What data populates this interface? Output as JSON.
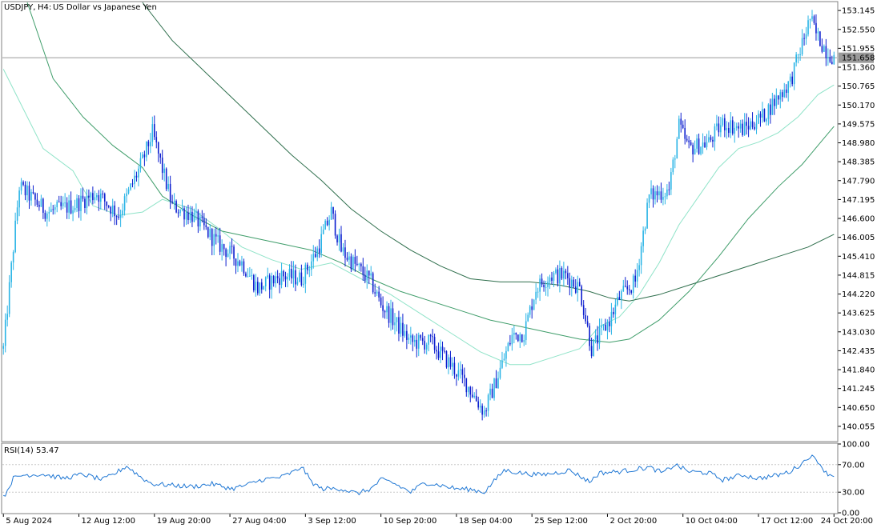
{
  "header": {
    "symbol": "USDJPY,",
    "timeframe": "H4:",
    "description": "US Dollar vs Japanese Yen"
  },
  "rsi_label": "RSI(14) 53.47",
  "colors": {
    "background": "#ffffff",
    "frame": "#808080",
    "grid": "#c8c8c8",
    "bull": "#2ab4e6",
    "bear": "#0d1fcf",
    "ma_fast": "#8fe3c8",
    "ma_mid": "#3f9d6a",
    "ma_slow": "#2e6e4c",
    "rsi_line": "#1f77d4",
    "price_label_bg": "#9a9a9a",
    "price_label_text": "#ffffff"
  },
  "chart_data": [
    {
      "type": "candlestick",
      "title": "USDJPY,, H4:  US Dollar vs Japanese Yen",
      "current_price": 151.658,
      "current_price_label": "151.658",
      "ylim": [
        139.6,
        153.4
      ],
      "y_ticks": [
        "153.145",
        "152.550",
        "151.955",
        "151.360",
        "150.765",
        "150.170",
        "149.575",
        "148.980",
        "148.385",
        "147.790",
        "147.195",
        "146.600",
        "146.005",
        "145.410",
        "144.815",
        "144.220",
        "143.625",
        "143.030",
        "142.435",
        "141.840",
        "141.245",
        "140.650",
        "140.055"
      ],
      "x_ticks": [
        "5 Aug 2024",
        "12 Aug 12:00",
        "19 Aug 20:00",
        "27 Aug 04:00",
        "3 Sep 12:00",
        "10 Sep 20:00",
        "18 Sep 04:00",
        "25 Sep 12:00",
        "2 Oct 20:00",
        "10 Oct 04:00",
        "17 Oct 12:00",
        "24 Oct 20:00"
      ],
      "close_path": [
        [
          0,
          142.5
        ],
        [
          8,
          147.6
        ],
        [
          22,
          146.8
        ],
        [
          35,
          147.0
        ],
        [
          47,
          147.4
        ],
        [
          58,
          146.7
        ],
        [
          70,
          148.4
        ],
        [
          75,
          149.3
        ],
        [
          85,
          147.0
        ],
        [
          95,
          146.7
        ],
        [
          108,
          145.8
        ],
        [
          120,
          145.2
        ],
        [
          128,
          144.4
        ],
        [
          140,
          144.8
        ],
        [
          150,
          144.7
        ],
        [
          158,
          145.6
        ],
        [
          165,
          146.8
        ],
        [
          170,
          145.6
        ],
        [
          185,
          144.6
        ],
        [
          190,
          143.9
        ],
        [
          205,
          142.7
        ],
        [
          215,
          142.7
        ],
        [
          225,
          142.0
        ],
        [
          233,
          141.4
        ],
        [
          242,
          140.5
        ],
        [
          248,
          141.5
        ],
        [
          256,
          142.9
        ],
        [
          262,
          143.0
        ],
        [
          268,
          144.4
        ],
        [
          275,
          144.8
        ],
        [
          283,
          144.8
        ],
        [
          290,
          144.4
        ],
        [
          296,
          142.5
        ],
        [
          305,
          143.4
        ],
        [
          310,
          144.1
        ],
        [
          318,
          144.6
        ],
        [
          325,
          147.3
        ],
        [
          335,
          147.5
        ],
        [
          340,
          149.5
        ],
        [
          345,
          148.8
        ],
        [
          355,
          149.0
        ],
        [
          362,
          149.6
        ],
        [
          372,
          149.4
        ],
        [
          382,
          149.8
        ],
        [
          392,
          150.6
        ],
        [
          396,
          150.9
        ],
        [
          402,
          152.1
        ],
        [
          406,
          152.9
        ],
        [
          409,
          152.4
        ],
        [
          414,
          151.9
        ],
        [
          418,
          151.66
        ]
      ],
      "ma_fast": [
        [
          0,
          151.3
        ],
        [
          20,
          148.8
        ],
        [
          35,
          148.1
        ],
        [
          45,
          147.0
        ],
        [
          58,
          146.7
        ],
        [
          70,
          146.8
        ],
        [
          80,
          147.2
        ],
        [
          95,
          146.9
        ],
        [
          108,
          146.3
        ],
        [
          120,
          145.7
        ],
        [
          135,
          145.3
        ],
        [
          150,
          145.0
        ],
        [
          165,
          145.2
        ],
        [
          180,
          144.7
        ],
        [
          195,
          144.2
        ],
        [
          210,
          143.6
        ],
        [
          225,
          143.0
        ],
        [
          240,
          142.4
        ],
        [
          255,
          142.0
        ],
        [
          265,
          142.0
        ],
        [
          275,
          142.2
        ],
        [
          290,
          142.5
        ],
        [
          300,
          143.2
        ],
        [
          310,
          143.5
        ],
        [
          320,
          144.2
        ],
        [
          330,
          145.2
        ],
        [
          340,
          146.4
        ],
        [
          350,
          147.3
        ],
        [
          360,
          148.2
        ],
        [
          370,
          148.8
        ],
        [
          380,
          149.0
        ],
        [
          390,
          149.3
        ],
        [
          400,
          149.8
        ],
        [
          410,
          150.5
        ],
        [
          418,
          150.8
        ]
      ],
      "ma_mid": [
        [
          12,
          153.4
        ],
        [
          25,
          151.0
        ],
        [
          40,
          149.8
        ],
        [
          55,
          148.9
        ],
        [
          70,
          148.2
        ],
        [
          80,
          147.3
        ],
        [
          95,
          146.7
        ],
        [
          110,
          146.2
        ],
        [
          125,
          146.0
        ],
        [
          140,
          145.8
        ],
        [
          155,
          145.6
        ],
        [
          170,
          145.2
        ],
        [
          185,
          144.7
        ],
        [
          200,
          144.3
        ],
        [
          215,
          144.0
        ],
        [
          230,
          143.7
        ],
        [
          245,
          143.4
        ],
        [
          260,
          143.2
        ],
        [
          275,
          143.0
        ],
        [
          290,
          142.8
        ],
        [
          305,
          142.7
        ],
        [
          315,
          142.8
        ],
        [
          330,
          143.4
        ],
        [
          345,
          144.3
        ],
        [
          360,
          145.4
        ],
        [
          375,
          146.6
        ],
        [
          390,
          147.6
        ],
        [
          402,
          148.3
        ],
        [
          410,
          148.9
        ],
        [
          418,
          149.5
        ]
      ],
      "ma_slow": [
        [
          70,
          153.4
        ],
        [
          85,
          152.2
        ],
        [
          100,
          151.3
        ],
        [
          115,
          150.4
        ],
        [
          130,
          149.5
        ],
        [
          145,
          148.6
        ],
        [
          160,
          147.8
        ],
        [
          175,
          146.9
        ],
        [
          190,
          146.2
        ],
        [
          205,
          145.6
        ],
        [
          220,
          145.1
        ],
        [
          235,
          144.7
        ],
        [
          250,
          144.6
        ],
        [
          265,
          144.6
        ],
        [
          280,
          144.5
        ],
        [
          295,
          144.3
        ],
        [
          305,
          144.1
        ],
        [
          315,
          144.0
        ],
        [
          330,
          144.2
        ],
        [
          345,
          144.5
        ],
        [
          360,
          144.8
        ],
        [
          375,
          145.1
        ],
        [
          390,
          145.4
        ],
        [
          405,
          145.7
        ],
        [
          418,
          146.1
        ]
      ]
    },
    {
      "type": "line",
      "title": "RSI(14) 53.47",
      "ylim": [
        0,
        100
      ],
      "levels": [
        30,
        70
      ],
      "y_ticks": [
        "100.00",
        "70.00",
        "30.00",
        "0.00"
      ],
      "path": [
        [
          0,
          22
        ],
        [
          5,
          50
        ],
        [
          10,
          55
        ],
        [
          20,
          56
        ],
        [
          30,
          50
        ],
        [
          40,
          56
        ],
        [
          50,
          48
        ],
        [
          55,
          55
        ],
        [
          62,
          68
        ],
        [
          70,
          50
        ],
        [
          75,
          42
        ],
        [
          85,
          40
        ],
        [
          95,
          38
        ],
        [
          105,
          42
        ],
        [
          115,
          35
        ],
        [
          122,
          40
        ],
        [
          130,
          48
        ],
        [
          140,
          52
        ],
        [
          148,
          62
        ],
        [
          150,
          68
        ],
        [
          155,
          45
        ],
        [
          160,
          35
        ],
        [
          170,
          35
        ],
        [
          178,
          28
        ],
        [
          185,
          35
        ],
        [
          190,
          48
        ],
        [
          195,
          45
        ],
        [
          205,
          30
        ],
        [
          212,
          44
        ],
        [
          220,
          40
        ],
        [
          228,
          35
        ],
        [
          235,
          34
        ],
        [
          242,
          30
        ],
        [
          252,
          62
        ],
        [
          260,
          58
        ],
        [
          270,
          55
        ],
        [
          278,
          58
        ],
        [
          285,
          62
        ],
        [
          295,
          45
        ],
        [
          300,
          58
        ],
        [
          310,
          60
        ],
        [
          320,
          64
        ],
        [
          325,
          66
        ],
        [
          332,
          58
        ],
        [
          338,
          70
        ],
        [
          345,
          60
        ],
        [
          355,
          58
        ],
        [
          362,
          48
        ],
        [
          372,
          55
        ],
        [
          380,
          50
        ],
        [
          390,
          55
        ],
        [
          396,
          60
        ],
        [
          402,
          72
        ],
        [
          406,
          83
        ],
        [
          410,
          75
        ],
        [
          414,
          58
        ],
        [
          418,
          53.47
        ]
      ]
    }
  ]
}
